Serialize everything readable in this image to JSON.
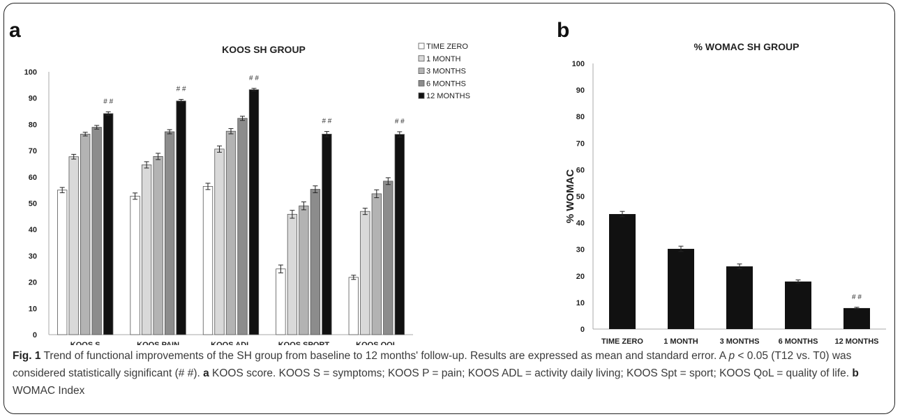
{
  "figure": {
    "caption": {
      "fig_label": "Fig. 1",
      "part1": " Trend of functional improvements of the SH group from baseline to 12 months' follow-up. Results are expressed as mean and standard error. A ",
      "p_symbol": "p",
      "part2": " < 0.05 (T12 vs. T0) was considered statistically significant (# #). ",
      "label_a": "a",
      "part3": " KOOS score. KOOS S = symptoms; KOOS P = pain; KOOS ADL = activity daily living; KOOS Spt = sport; KOOS QoL = quality of life. ",
      "label_b": "b",
      "part4": " WOMAC Index"
    }
  },
  "chart_data": [
    {
      "panel_label": "a",
      "type": "bar",
      "title": "KOOS SH GROUP",
      "xlabel": "",
      "ylabel": "",
      "ylim": [
        0,
        100
      ],
      "yticks": [
        "0",
        "10",
        "20",
        "30",
        "40",
        "50",
        "60",
        "70",
        "80",
        "90",
        "100"
      ],
      "categories": [
        "KOOS S",
        "KOOS PAIN",
        "KOOS ADL",
        "KOOS SPORT",
        "KOOS QOL"
      ],
      "series": [
        {
          "name": "TIME ZERO",
          "color": "#ffffff",
          "values": [
            55,
            52.7,
            56.4,
            25,
            21.8
          ],
          "errors": [
            1.0,
            1.2,
            1.2,
            1.5,
            0.8
          ]
        },
        {
          "name": "1 MONTH",
          "color": "#d9d9d9",
          "values": [
            67.7,
            64.6,
            70.6,
            45.8,
            46.9
          ],
          "errors": [
            0.9,
            1.2,
            1.2,
            1.5,
            1.2
          ]
        },
        {
          "name": "3 MONTHS",
          "color": "#b3b3b3",
          "values": [
            76.3,
            67.8,
            77.4,
            49,
            53.6
          ],
          "errors": [
            0.7,
            1.2,
            1.0,
            1.5,
            1.5
          ]
        },
        {
          "name": "6 MONTHS",
          "color": "#8c8c8c",
          "values": [
            78.9,
            77.2,
            82.3,
            55.3,
            58.4
          ],
          "errors": [
            0.7,
            0.8,
            0.8,
            1.3,
            1.3
          ]
        },
        {
          "name": "12 MONTHS",
          "color": "#111111",
          "values": [
            84.1,
            88.9,
            93.2,
            76.3,
            76.2
          ],
          "errors": [
            0.7,
            0.6,
            0.5,
            1.0,
            1.0
          ]
        }
      ],
      "annotations": [
        {
          "category": "KOOS S",
          "series": "12 MONTHS",
          "text": "# #"
        },
        {
          "category": "KOOS PAIN",
          "series": "12 MONTHS",
          "text": "# #"
        },
        {
          "category": "KOOS ADL",
          "series": "12 MONTHS",
          "text": "# #"
        },
        {
          "category": "KOOS SPORT",
          "series": "12 MONTHS",
          "text": "# #"
        },
        {
          "category": "KOOS QOL",
          "series": "12 MONTHS",
          "text": "# #"
        }
      ],
      "legend": "right",
      "grid": false
    },
    {
      "panel_label": "b",
      "type": "bar",
      "title": "% WOMAC SH GROUP",
      "xlabel": "",
      "ylabel": "% WOMAC",
      "ylim": [
        0,
        100
      ],
      "yticks": [
        "0",
        "10",
        "20",
        "30",
        "40",
        "50",
        "60",
        "70",
        "80",
        "90",
        "100"
      ],
      "categories": [
        "TIME ZERO",
        "1 MONTH",
        "3 MONTHS",
        "6 MONTHS",
        "12 MONTHS"
      ],
      "values": [
        43.3,
        30.2,
        23.6,
        17.9,
        7.9
      ],
      "errors": [
        1.0,
        1.0,
        0.9,
        0.6,
        0.3
      ],
      "color": "#111111",
      "annotations": [
        {
          "category": "12 MONTHS",
          "text": "# #"
        }
      ],
      "legend": "none",
      "grid": false
    }
  ]
}
